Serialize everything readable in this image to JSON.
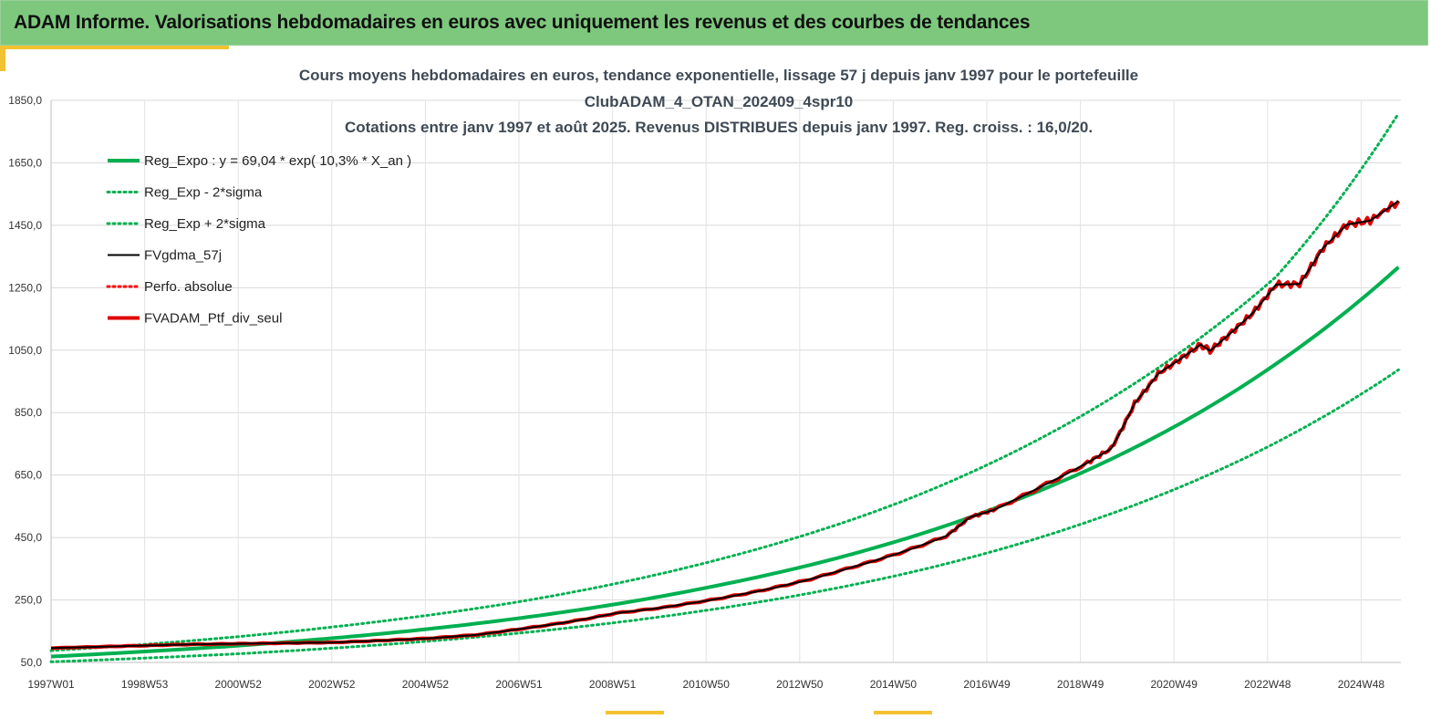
{
  "banner": {
    "title": "ADAM Informe. Valorisations hebdomadaires en euros avec uniquement les revenus et des courbes de tendances"
  },
  "chart_data": {
    "type": "line",
    "title_lines": [
      "Cours moyens hebdomadaires  en euros, tendance exponentielle, lissage 57 j depuis janv 1997 pour le portefeuille",
      "ClubADAM_4_OTAN_202409_4spr10",
      "Cotations  entre janv 1997 et août 2025. Revenus DISTRIBUES depuis janv 1997. Reg. croiss. : 16,0/20."
    ],
    "x_ticks": [
      "1997W01",
      "1998W53",
      "2000W52",
      "2002W52",
      "2004W52",
      "2006W51",
      "2008W51",
      "2010W50",
      "2012W50",
      "2014W50",
      "2016W49",
      "2018W49",
      "2020W49",
      "2022W48",
      "2024W48"
    ],
    "y_ticks": [
      "1850,0",
      "1650,0",
      "1450,0",
      "1250,0",
      "1050,0",
      "850,0",
      "650,0",
      "450,0",
      "250,0",
      "50,0"
    ],
    "ylim": [
      50,
      1850
    ],
    "xlim": [
      1997.0,
      2025.65
    ],
    "grid": true,
    "legend_position": "top-left",
    "series": [
      {
        "name": "Reg_Expo : y = 69,04 * exp( 10,3% *  X_an )",
        "color": "#00b050",
        "style": "solid",
        "x": [
          1997,
          1999,
          2001,
          2003,
          2005,
          2007,
          2009,
          2011,
          2013,
          2015,
          2017,
          2019,
          2021,
          2023,
          2025.6
        ],
        "values": [
          69,
          85,
          104,
          128,
          157,
          193,
          237,
          292,
          358,
          440,
          542,
          666,
          818,
          1006,
          1316
        ]
      },
      {
        "name": "Reg_Exp - 2*sigma",
        "color": "#00b050",
        "style": "dotted",
        "x": [
          1997,
          1999,
          2001,
          2003,
          2005,
          2007,
          2009,
          2011,
          2013,
          2015,
          2017,
          2019,
          2021,
          2023,
          2025.6
        ],
        "values": [
          52,
          64,
          78,
          96,
          118,
          145,
          178,
          219,
          269,
          330,
          406,
          500,
          614,
          754,
          987
        ]
      },
      {
        "name": "Reg_Exp + 2*sigma",
        "color": "#00b050",
        "style": "dotted",
        "x": [
          1997,
          1999,
          2001,
          2003,
          2005,
          2007,
          2009,
          2011,
          2013,
          2015,
          2017,
          2019,
          2021,
          2023,
          2025.6
        ],
        "values": [
          88,
          108,
          133,
          164,
          201,
          246,
          303,
          373,
          458,
          562,
          692,
          851,
          1046,
          1285,
          1808
        ]
      },
      {
        "name": "FVgdma_57j",
        "color": "#000000",
        "style": "solid",
        "x": [
          1997,
          1998,
          1999,
          2000,
          2001,
          2002,
          2003,
          2004,
          2005,
          2006,
          2007,
          2008,
          2009,
          2010,
          2011,
          2012,
          2013,
          2014,
          2015,
          2016,
          2016.5,
          2017,
          2018,
          2019,
          2019.5,
          2020,
          2020.5,
          2021,
          2021.4,
          2021.6,
          2022,
          2022.5,
          2023,
          2023.5,
          2024,
          2024.5,
          2025,
          2025.6
        ],
        "values": [
          96,
          100,
          104,
          108,
          110,
          112,
          114,
          120,
          127,
          138,
          158,
          180,
          208,
          226,
          250,
          278,
          312,
          355,
          400,
          455,
          515,
          538,
          612,
          690,
          735,
          880,
          975,
          1025,
          1068,
          1048,
          1100,
          1168,
          1260,
          1262,
          1378,
          1452,
          1465,
          1528
        ]
      },
      {
        "name": "Perfo. absolue",
        "color": "#ff0000",
        "style": "dotted",
        "x": [],
        "values": []
      },
      {
        "name": "FVADAM_Ptf_div_seul",
        "color": "#e00000",
        "style": "solid",
        "x": [
          1997,
          1998,
          1999,
          2000,
          2001,
          2002,
          2003,
          2004,
          2005,
          2006,
          2007,
          2008,
          2009,
          2010,
          2011,
          2012,
          2013,
          2014,
          2015,
          2016,
          2016.5,
          2017,
          2018,
          2019,
          2019.5,
          2020,
          2020.5,
          2021,
          2021.4,
          2021.6,
          2022,
          2022.5,
          2023,
          2023.5,
          2024,
          2024.5,
          2025,
          2025.6
        ],
        "values": [
          96,
          100,
          104,
          108,
          110,
          112,
          114,
          120,
          127,
          138,
          158,
          180,
          208,
          226,
          250,
          278,
          312,
          355,
          400,
          455,
          515,
          538,
          612,
          690,
          735,
          880,
          975,
          1025,
          1068,
          1048,
          1100,
          1168,
          1260,
          1262,
          1378,
          1452,
          1465,
          1528
        ]
      }
    ]
  }
}
